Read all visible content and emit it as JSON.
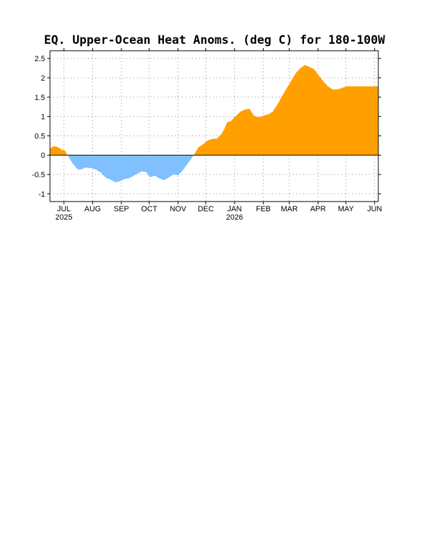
{
  "chart_data": {
    "type": "area",
    "title": "EQ. Upper-Ocean Heat Anoms. (deg C) for 180-100W",
    "xlabel": "",
    "ylabel": "",
    "ylim": [
      -1.2,
      2.7
    ],
    "y_ticks": [
      {
        "value": 2.5,
        "label": "2.5"
      },
      {
        "value": 2,
        "label": "2"
      },
      {
        "value": 1.5,
        "label": "1.5"
      },
      {
        "value": 1,
        "label": "1"
      },
      {
        "value": 0.5,
        "label": "0.5"
      },
      {
        "value": 0,
        "label": "0"
      },
      {
        "value": -0.5,
        "label": "-0.5"
      },
      {
        "value": -1,
        "label": "-1"
      }
    ],
    "xlim": [
      "2025-06-16",
      "2026-06-05"
    ],
    "x_ticks": [
      {
        "date": "2025-07-01",
        "label": "JUL",
        "sublabel": "2025"
      },
      {
        "date": "2025-08-01",
        "label": "AUG",
        "sublabel": ""
      },
      {
        "date": "2025-09-01",
        "label": "SEP",
        "sublabel": ""
      },
      {
        "date": "2025-10-01",
        "label": "OCT",
        "sublabel": ""
      },
      {
        "date": "2025-11-01",
        "label": "NOV",
        "sublabel": ""
      },
      {
        "date": "2025-12-01",
        "label": "DEC",
        "sublabel": ""
      },
      {
        "date": "2026-01-01",
        "label": "JAN",
        "sublabel": "2026"
      },
      {
        "date": "2026-02-01",
        "label": "FEB",
        "sublabel": ""
      },
      {
        "date": "2026-03-01",
        "label": "MAR",
        "sublabel": ""
      },
      {
        "date": "2026-04-01",
        "label": "APR",
        "sublabel": ""
      },
      {
        "date": "2026-05-01",
        "label": "MAY",
        "sublabel": ""
      },
      {
        "date": "2026-06-01",
        "label": "JUN",
        "sublabel": ""
      }
    ],
    "grid": true,
    "colors": {
      "positive": "#ffa000",
      "negative": "#80c0ff"
    },
    "series": [
      {
        "x": [
          "2025-06-16",
          "2025-06-19",
          "2025-06-22",
          "2025-06-25",
          "2025-06-29",
          "2025-07-02",
          "2025-07-05",
          "2025-07-10",
          "2025-07-15",
          "2025-07-18",
          "2025-07-21",
          "2025-07-24",
          "2025-07-28",
          "2025-08-01",
          "2025-08-05",
          "2025-08-10",
          "2025-08-15",
          "2025-08-20",
          "2025-08-25",
          "2025-08-30",
          "2025-09-04",
          "2025-09-09",
          "2025-09-13",
          "2025-09-18",
          "2025-09-23",
          "2025-09-28",
          "2025-10-02",
          "2025-10-07",
          "2025-10-12",
          "2025-10-17",
          "2025-10-22",
          "2025-10-27",
          "2025-11-01",
          "2025-11-06",
          "2025-11-09",
          "2025-11-13",
          "2025-11-18",
          "2025-11-23",
          "2025-11-28",
          "2025-12-03",
          "2025-12-08",
          "2025-12-13",
          "2025-12-18",
          "2025-12-21",
          "2025-12-24",
          "2025-12-28",
          "2026-01-02",
          "2026-01-07",
          "2026-01-12",
          "2026-01-17",
          "2026-01-22",
          "2026-01-27",
          "2026-02-01",
          "2026-02-06",
          "2026-02-11",
          "2026-02-16",
          "2026-02-21",
          "2026-02-26",
          "2026-03-03",
          "2026-03-08",
          "2026-03-13",
          "2026-03-18",
          "2026-03-23",
          "2026-03-28",
          "2026-04-02",
          "2026-04-07",
          "2026-04-12",
          "2026-04-17",
          "2026-04-22",
          "2026-04-27",
          "2026-05-02",
          "2026-05-07",
          "2026-05-12",
          "2026-05-17",
          "2026-05-22",
          "2026-05-27",
          "2026-06-01",
          "2026-06-05"
        ],
        "values": [
          0.17,
          0.22,
          0.23,
          0.2,
          0.14,
          0.12,
          0.0,
          -0.2,
          -0.35,
          -0.38,
          -0.36,
          -0.32,
          -0.33,
          -0.34,
          -0.38,
          -0.45,
          -0.58,
          -0.63,
          -0.7,
          -0.68,
          -0.62,
          -0.6,
          -0.55,
          -0.48,
          -0.42,
          -0.44,
          -0.57,
          -0.53,
          -0.6,
          -0.65,
          -0.58,
          -0.5,
          -0.52,
          -0.4,
          -0.3,
          -0.17,
          0.0,
          0.2,
          0.28,
          0.38,
          0.42,
          0.43,
          0.55,
          0.68,
          0.85,
          0.88,
          1.0,
          1.12,
          1.18,
          1.2,
          1.02,
          0.98,
          1.02,
          1.05,
          1.12,
          1.3,
          1.52,
          1.72,
          1.92,
          2.12,
          2.25,
          2.33,
          2.28,
          2.22,
          2.05,
          1.9,
          1.77,
          1.7,
          1.7,
          1.74,
          1.78,
          1.78,
          1.78,
          1.78,
          1.78,
          1.78,
          1.78,
          1.78
        ]
      }
    ]
  }
}
